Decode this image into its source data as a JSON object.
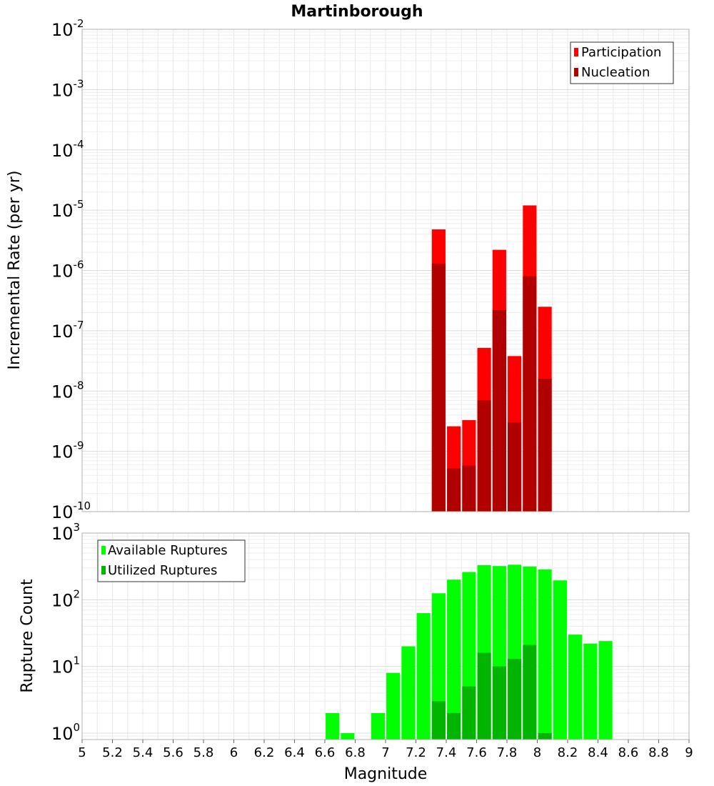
{
  "chart_data": [
    {
      "type": "bar",
      "title": "Martinborough",
      "ylabel": "Incremental Rate (per yr)",
      "yscale": "log",
      "ylim": [
        1e-10,
        0.01
      ],
      "xlim": [
        5,
        9
      ],
      "legend_position": "top-right",
      "grid": true,
      "series": [
        {
          "name": "Participation",
          "color": "#ff0000",
          "points": [
            {
              "x": 7.35,
              "y": 4.8e-06
            },
            {
              "x": 7.45,
              "y": 2.6e-09
            },
            {
              "x": 7.55,
              "y": 3.3e-09
            },
            {
              "x": 7.65,
              "y": 5.2e-08
            },
            {
              "x": 7.75,
              "y": 2.2e-06
            },
            {
              "x": 7.85,
              "y": 3.8e-08
            },
            {
              "x": 7.95,
              "y": 1.2e-05
            },
            {
              "x": 8.05,
              "y": 2.5e-07
            }
          ]
        },
        {
          "name": "Nucleation",
          "color": "#b00000",
          "points": [
            {
              "x": 7.35,
              "y": 1.3e-06
            },
            {
              "x": 7.45,
              "y": 5.2e-10
            },
            {
              "x": 7.55,
              "y": 5.8e-10
            },
            {
              "x": 7.65,
              "y": 7e-09
            },
            {
              "x": 7.75,
              "y": 2.2e-07
            },
            {
              "x": 7.85,
              "y": 3e-09
            },
            {
              "x": 7.95,
              "y": 8e-07
            },
            {
              "x": 8.05,
              "y": 1.6e-08
            }
          ]
        }
      ]
    },
    {
      "type": "bar",
      "ylabel": "Rupture Count",
      "xlabel": "Magnitude",
      "yscale": "log",
      "ylim": [
        0.8,
        1000
      ],
      "xlim": [
        5,
        9
      ],
      "x_ticks": [
        "5",
        "5.2",
        "5.4",
        "5.6",
        "5.8",
        "6",
        "6.2",
        "6.4",
        "6.6",
        "6.8",
        "7",
        "7.2",
        "7.4",
        "7.6",
        "7.8",
        "8",
        "8.2",
        "8.4",
        "8.6",
        "8.8",
        "9"
      ],
      "legend_position": "top-left",
      "grid": true,
      "series": [
        {
          "name": "Available Ruptures",
          "color": "#00ff00",
          "points": [
            {
              "x": 6.65,
              "y": 2
            },
            {
              "x": 6.75,
              "y": 1
            },
            {
              "x": 6.95,
              "y": 2
            },
            {
              "x": 7.05,
              "y": 8
            },
            {
              "x": 7.15,
              "y": 20
            },
            {
              "x": 7.25,
              "y": 63
            },
            {
              "x": 7.35,
              "y": 125
            },
            {
              "x": 7.45,
              "y": 200
            },
            {
              "x": 7.55,
              "y": 260
            },
            {
              "x": 7.65,
              "y": 330
            },
            {
              "x": 7.75,
              "y": 320
            },
            {
              "x": 7.85,
              "y": 335
            },
            {
              "x": 7.95,
              "y": 315
            },
            {
              "x": 8.05,
              "y": 285
            },
            {
              "x": 8.15,
              "y": 195
            },
            {
              "x": 8.25,
              "y": 30
            },
            {
              "x": 8.35,
              "y": 22
            },
            {
              "x": 8.45,
              "y": 24
            }
          ]
        },
        {
          "name": "Utilized Ruptures",
          "color": "#00b400",
          "points": [
            {
              "x": 7.35,
              "y": 3
            },
            {
              "x": 7.45,
              "y": 2
            },
            {
              "x": 7.55,
              "y": 5
            },
            {
              "x": 7.65,
              "y": 16
            },
            {
              "x": 7.75,
              "y": 10
            },
            {
              "x": 7.85,
              "y": 13
            },
            {
              "x": 7.95,
              "y": 21
            },
            {
              "x": 8.05,
              "y": 1
            }
          ]
        }
      ]
    }
  ]
}
